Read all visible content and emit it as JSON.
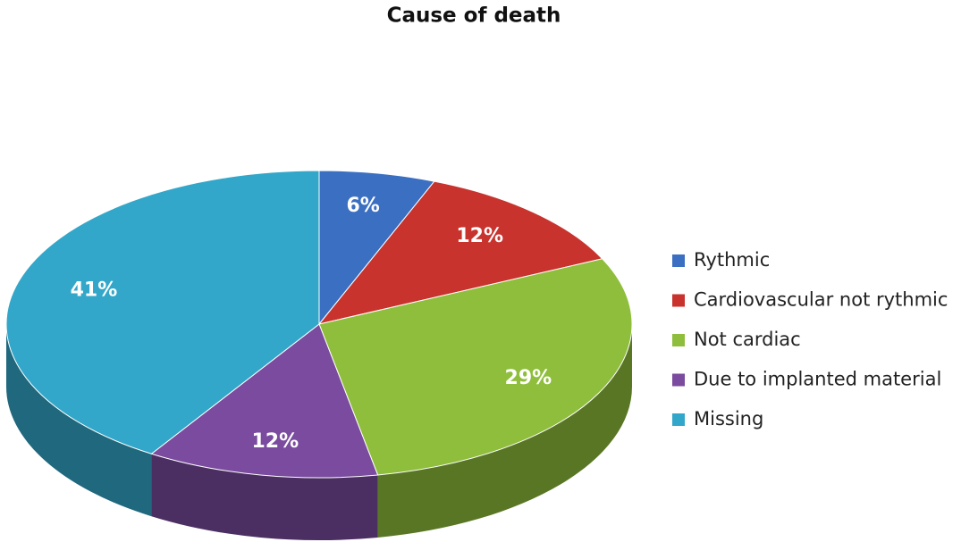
{
  "chart_data": {
    "type": "pie",
    "title": "Cause of death",
    "categories": [
      "Rythmic",
      "Cardiovascular not rythmic",
      "Not cardiac",
      "Due to implanted material",
      "Missing"
    ],
    "values": [
      6,
      12,
      29,
      12,
      41
    ],
    "value_labels": [
      "6%",
      "12%",
      "29%",
      "12%",
      "41%"
    ],
    "colors": [
      "#3b6fc2",
      "#c8332e",
      "#8fbe3c",
      "#7a4b9e",
      "#33a7c9"
    ],
    "legend": "right"
  }
}
